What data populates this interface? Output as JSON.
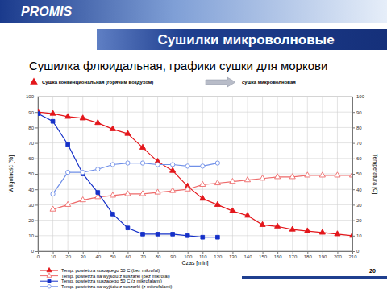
{
  "slide": {
    "logo": "PROMIS",
    "page_number": "20"
  },
  "chart_data": {
    "type": "line",
    "title": "Сушилки микроволновые",
    "subtitle": "Сушилка флюидальная, графики сушки для моркови",
    "annotations": [
      "Сушка конвенциональная (горячим воздухом)",
      "сушка микроволновая"
    ],
    "x_label": "Czas [min]",
    "y_label": "Wilgotność [%]",
    "y2_label": "Temperatura [C]",
    "x": [
      0,
      10,
      20,
      30,
      40,
      50,
      60,
      70,
      80,
      90,
      100,
      110,
      120,
      130,
      140,
      150,
      160,
      170,
      180,
      190,
      200,
      210
    ],
    "xlim": [
      0,
      210
    ],
    "xticks": [
      0,
      10,
      20,
      30,
      40,
      50,
      60,
      70,
      80,
      90,
      100,
      110,
      120,
      130,
      140,
      150,
      160,
      170,
      180,
      190,
      200,
      210
    ],
    "ylim": [
      0,
      100
    ],
    "yticks": [
      0,
      10,
      20,
      30,
      40,
      50,
      60,
      70,
      80,
      90,
      100
    ],
    "y2lim": [
      0,
      100
    ],
    "y2ticks": [
      0,
      10,
      20,
      30,
      40,
      50,
      60,
      70,
      80,
      90,
      100
    ],
    "grid": true,
    "legend": "bottom",
    "series": [
      {
        "name": "Temp. powietrza suszącego 50 C (bez mikrofal)",
        "color": "#e3161b",
        "marker": "triangle",
        "line_style": "solid",
        "values": [
          90,
          89,
          87,
          86,
          83,
          79,
          76,
          67,
          58,
          52,
          42,
          34,
          30,
          26,
          23,
          17,
          16,
          14,
          13,
          12,
          11,
          10
        ]
      },
      {
        "name": "Temp. powietrza na wyjściu z suszarki (bez mikrofal)",
        "color": "#ee6a6a",
        "marker": "triangle-open",
        "line_style": "solid",
        "axis": "y2",
        "values": [
          null,
          27,
          30,
          33,
          35,
          36,
          37,
          37,
          38,
          39,
          40,
          43,
          44,
          45,
          46,
          47,
          48,
          48,
          49,
          49,
          49,
          49
        ]
      },
      {
        "name": "Temp. powietrza suszącego 50 C (z mikrofalami)",
        "color": "#1530c8",
        "marker": "square",
        "line_style": "solid",
        "values": [
          89,
          84,
          69,
          50,
          38,
          24,
          15,
          11,
          11,
          11,
          10,
          9,
          9,
          null,
          null,
          null,
          null,
          null,
          null,
          null,
          null,
          null
        ]
      },
      {
        "name": "Temp. powietrza na wyjściu z suszarki (z mikrofalami)",
        "color": "#6f8fe8",
        "marker": "circle-open",
        "line_style": "solid",
        "axis": "y2",
        "values": [
          null,
          37,
          51,
          51,
          53,
          56,
          57,
          57,
          56,
          56,
          55,
          55,
          57,
          null,
          null,
          null,
          null,
          null,
          null,
          null,
          null,
          null
        ]
      }
    ]
  }
}
